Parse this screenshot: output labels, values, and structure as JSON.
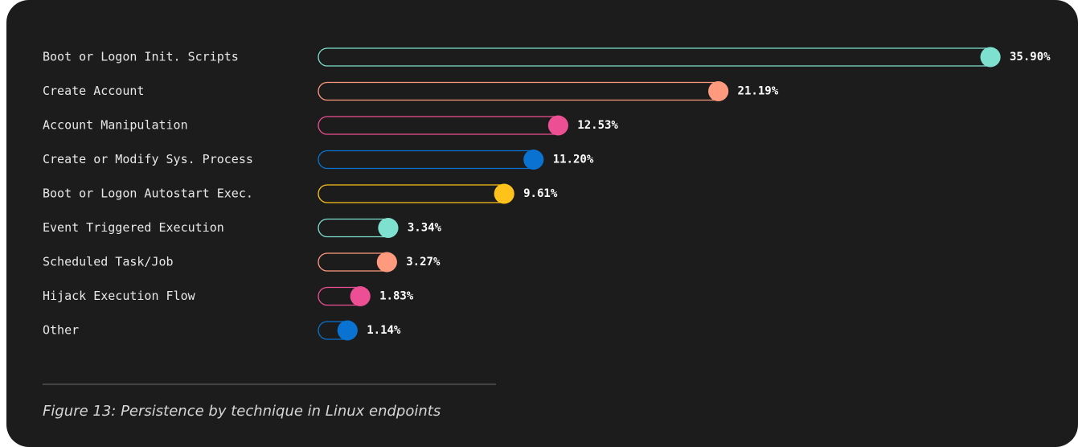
{
  "chart_data": {
    "type": "bar",
    "orientation": "horizontal",
    "caption": "Figure 13: Persistence by technique in Linux endpoints",
    "categories": [
      "Boot or Logon Init. Scripts",
      "Create Account",
      "Account Manipulation",
      "Create or Modify Sys. Process",
      "Boot or Logon Autostart Exec.",
      "Event Triggered Execution",
      "Scheduled Task/Job",
      "Hijack Execution Flow",
      "Other"
    ],
    "values": [
      35.9,
      21.19,
      12.53,
      11.2,
      9.61,
      3.34,
      3.27,
      1.83,
      1.14
    ],
    "value_labels": [
      "35.90%",
      "21.19%",
      "12.53%",
      "11.20%",
      "9.61%",
      "3.34%",
      "3.27%",
      "1.83%",
      "1.14%"
    ],
    "colors": [
      "#7ee0cf",
      "#ff9a7e",
      "#ec4f93",
      "#0a73d1",
      "#ffc21a",
      "#7ee0cf",
      "#ff9a7e",
      "#ec4f93",
      "#0a73d1"
    ]
  }
}
